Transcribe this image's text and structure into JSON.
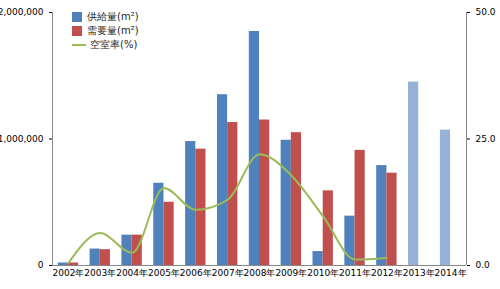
{
  "chart_data": {
    "type": "bar",
    "categories": [
      "2002年",
      "2003年",
      "2004年",
      "2005年",
      "2006年",
      "2007年",
      "2008年",
      "2009年",
      "2010年",
      "2011年",
      "2012年",
      "2013年",
      "2014年"
    ],
    "series": [
      {
        "name": "供給量(m²)",
        "type": "bar",
        "color": "#4f81bd",
        "colors": [
          "#4f81bd",
          "#4f81bd",
          "#4f81bd",
          "#4f81bd",
          "#4f81bd",
          "#4f81bd",
          "#4f81bd",
          "#4f81bd",
          "#4f81bd",
          "#4f81bd",
          "#4f81bd",
          "#95b3d7",
          "#95b3d7"
        ],
        "values": [
          20000,
          130000,
          240000,
          650000,
          980000,
          1350000,
          1850000,
          990000,
          110000,
          390000,
          790000,
          1450000,
          1070000
        ]
      },
      {
        "name": "需要量(m²)",
        "type": "bar",
        "color": "#c0504d",
        "values": [
          20000,
          125000,
          240000,
          500000,
          920000,
          1130000,
          1150000,
          1050000,
          590000,
          910000,
          730000,
          null,
          null
        ]
      },
      {
        "name": "空室率(%)",
        "type": "line",
        "color": "#9bbb59",
        "axis": "y2",
        "line_style": "smooth",
        "values": [
          0.5,
          6.4,
          2.5,
          15.3,
          11,
          13,
          22,
          17.8,
          9.7,
          1.2,
          1.5,
          null,
          null
        ]
      }
    ],
    "ylim": [
      0,
      2000000
    ],
    "yticks": [
      0,
      {
        "value": 1000000,
        "label": "1,000,000"
      },
      {
        "value": 2000000,
        "label": "2,000,000"
      }
    ],
    "y2lim": [
      0,
      50
    ],
    "y2ticks": [
      {
        "value": 0,
        "label": "0.0"
      },
      {
        "value": 25,
        "label": "25.0"
      },
      {
        "value": 50,
        "label": "50.0"
      }
    ],
    "legend": "top-left",
    "grid": false
  }
}
